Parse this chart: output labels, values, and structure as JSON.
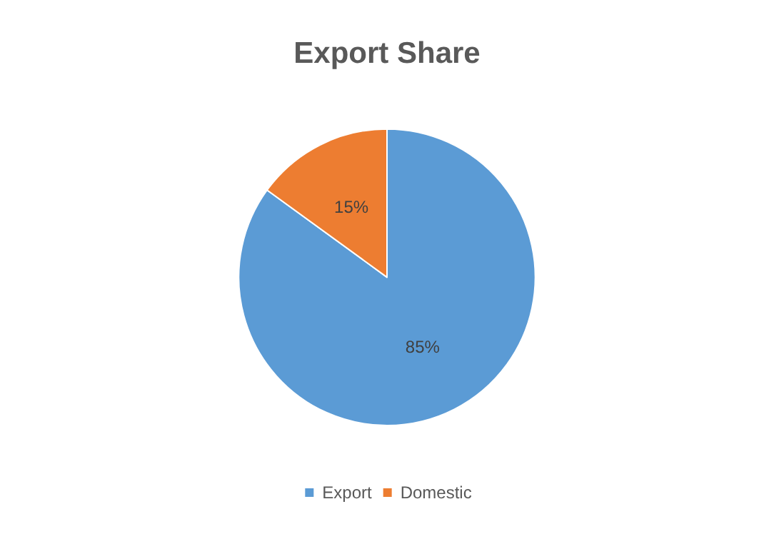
{
  "chart_data": {
    "type": "pie",
    "title": "Export Share",
    "categories": [
      "Export",
      "Domestic"
    ],
    "values": [
      85,
      15
    ],
    "colors": [
      "#5b9bd5",
      "#ed7d31"
    ],
    "value_labels": [
      "85%",
      "15%"
    ],
    "legend": "bottom"
  }
}
